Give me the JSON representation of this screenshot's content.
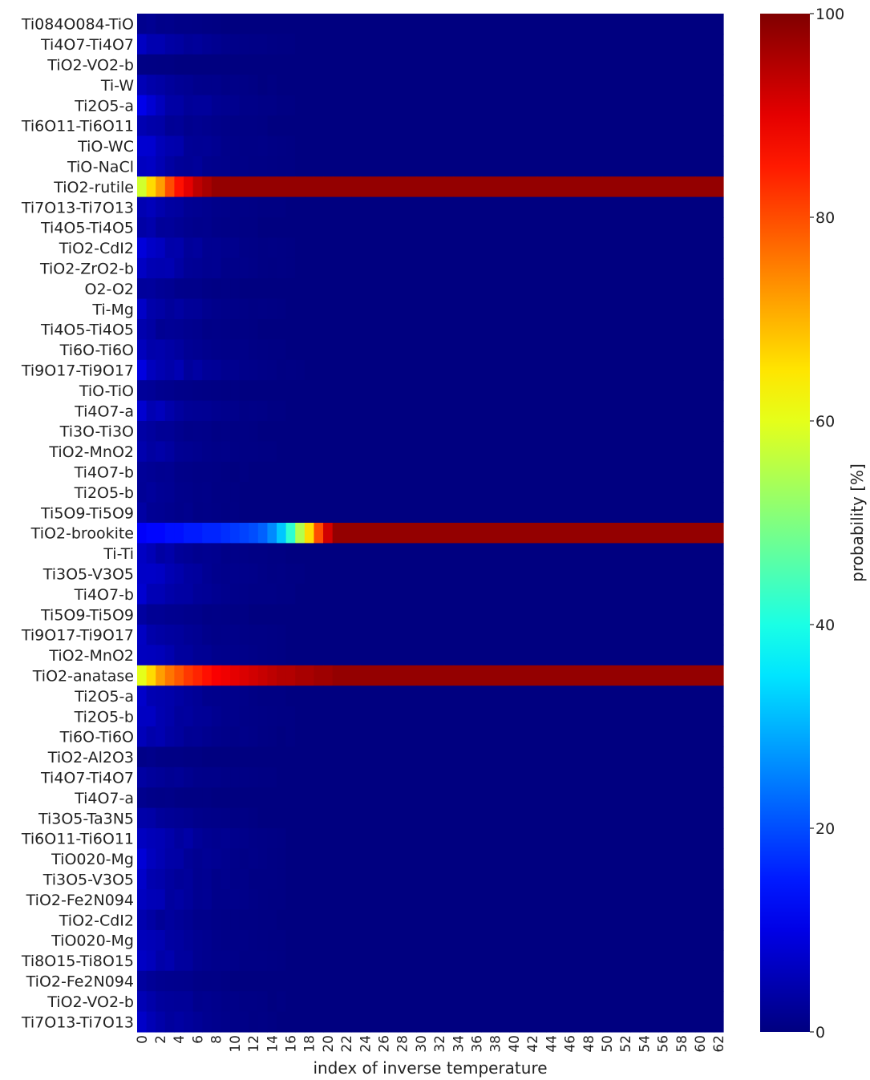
{
  "chart_data": {
    "type": "heatmap",
    "xlabel": "index of inverse temperature",
    "colorbar": {
      "label": "probability [%]",
      "range": [
        0,
        100
      ],
      "ticks": [
        "0",
        "20",
        "40",
        "60",
        "80",
        "100"
      ],
      "colormap": "jet"
    },
    "x_ticks": [
      "0",
      "2",
      "4",
      "6",
      "8",
      "10",
      "12",
      "14",
      "16",
      "18",
      "20",
      "22",
      "24",
      "26",
      "28",
      "30",
      "32",
      "34",
      "36",
      "38",
      "40",
      "42",
      "44",
      "46",
      "48",
      "50",
      "52",
      "54",
      "56",
      "58",
      "60",
      "62"
    ],
    "n_columns": 63,
    "rows": [
      "Ti084O084-TiO",
      "Ti4O7-Ti4O7",
      "TiO2-VO2-b",
      "Ti-W",
      "Ti2O5-a",
      "Ti6O11-Ti6O11",
      "TiO-WC",
      "TiO-NaCl",
      "TiO2-rutile",
      "Ti7O13-Ti7O13",
      "Ti4O5-Ti4O5",
      "TiO2-CdI2",
      "TiO2-ZrO2-b",
      "O2-O2",
      "Ti-Mg",
      "Ti4O5-Ti4O5",
      "Ti6O-Ti6O",
      "Ti9O17-Ti9O17",
      "TiO-TiO",
      "Ti4O7-a",
      "Ti3O-Ti3O",
      "TiO2-MnO2",
      "Ti4O7-b",
      "Ti2O5-b",
      "Ti5O9-Ti5O9",
      "TiO2-brookite",
      "Ti-Ti",
      "Ti3O5-V3O5",
      "Ti4O7-b",
      "Ti5O9-Ti5O9",
      "Ti9O17-Ti9O17",
      "TiO2-MnO2",
      "TiO2-anatase",
      "Ti2O5-a",
      "Ti2O5-b",
      "Ti6O-Ti6O",
      "TiO2-Al2O3",
      "Ti4O7-Ti4O7",
      "Ti4O7-a",
      "Ti3O5-Ta3N5",
      "Ti6O11-Ti6O11",
      "TiO020-Mg",
      "Ti3O5-V3O5",
      "TiO2-Fe2N094",
      "TiO2-CdI2",
      "TiO020-Mg",
      "Ti8O15-Ti8O15",
      "TiO2-Fe2N094",
      "TiO2-VO2-b",
      "Ti7O13-Ti7O13"
    ],
    "highlight_rows": [
      {
        "name": "TiO2-rutile",
        "values_first_columns": [
          58,
          66,
          72,
          80,
          86,
          90,
          94,
          96,
          98
        ],
        "value_after": 98
      },
      {
        "name": "TiO2-brookite",
        "values_first_columns": [
          12,
          13,
          13,
          14,
          14,
          15,
          15,
          16,
          16,
          17,
          18,
          19,
          20,
          22,
          26,
          32,
          42,
          55,
          66,
          80,
          92
        ],
        "value_after": 98
      },
      {
        "name": "TiO2-anatase",
        "values_first_columns": [
          60,
          66,
          72,
          76,
          79,
          82,
          84,
          86,
          88,
          89,
          90,
          91,
          92,
          93,
          94,
          95,
          95,
          96,
          96,
          97,
          97
        ],
        "value_after": 98
      }
    ],
    "background_value_range": [
      0,
      12
    ]
  }
}
